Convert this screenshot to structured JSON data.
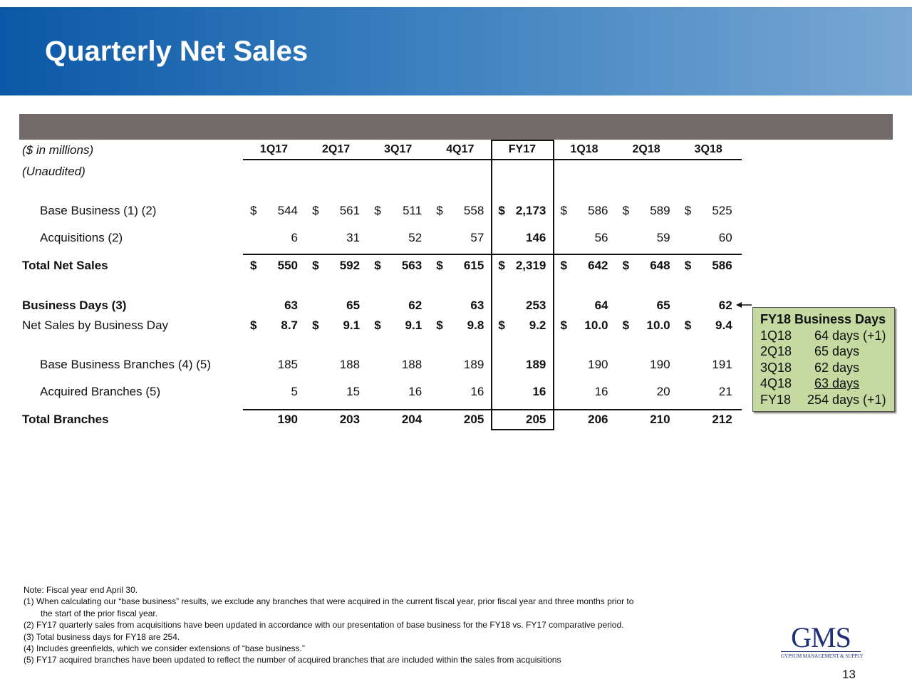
{
  "title": "Quarterly Net Sales",
  "table": {
    "units": "($ in millions)",
    "unaudited": "(Unaudited)",
    "columns": [
      "1Q17",
      "2Q17",
      "3Q17",
      "4Q17",
      "FY17",
      "1Q18",
      "2Q18",
      "3Q18"
    ],
    "rows": [
      {
        "label": "Base Business (1) (2)",
        "indent": true,
        "bold": false,
        "dollar": true,
        "values": [
          "544",
          "561",
          "511",
          "558",
          "2,173",
          "586",
          "589",
          "525"
        ]
      },
      {
        "label": "Acquisitions (2)",
        "indent": true,
        "bold": false,
        "dollar": false,
        "values": [
          "6",
          "31",
          "52",
          "57",
          "146",
          "56",
          "59",
          "60"
        ]
      },
      {
        "label": "Total Net Sales",
        "indent": false,
        "bold": true,
        "dollar": true,
        "values": [
          "550",
          "592",
          "563",
          "615",
          "2,319",
          "642",
          "648",
          "586"
        ]
      },
      {
        "label": "Business Days (3)",
        "indent": false,
        "bold": true,
        "dollar": false,
        "values": [
          "63",
          "65",
          "62",
          "63",
          "253",
          "64",
          "65",
          "62"
        ]
      },
      {
        "label": "Net Sales by Business Day",
        "indent": false,
        "bold": false,
        "dollar": true,
        "values": [
          "8.7",
          "9.1",
          "9.1",
          "9.8",
          "9.2",
          "10.0",
          "10.0",
          "9.4"
        ]
      },
      {
        "label": "Base Business Branches (4) (5)",
        "indent": true,
        "bold": false,
        "dollar": false,
        "values": [
          "185",
          "188",
          "188",
          "189",
          "189",
          "190",
          "190",
          "191"
        ]
      },
      {
        "label": "Acquired Branches (5)",
        "indent": true,
        "bold": false,
        "dollar": false,
        "values": [
          "5",
          "15",
          "16",
          "16",
          "16",
          "16",
          "20",
          "21"
        ]
      },
      {
        "label": "Total Branches",
        "indent": false,
        "bold": true,
        "dollar": false,
        "values": [
          "190",
          "203",
          "204",
          "205",
          "205",
          "206",
          "210",
          "212"
        ]
      }
    ],
    "currency_symbol": "$"
  },
  "days_box": {
    "title": "FY18 Business Days",
    "rows": [
      [
        "1Q18",
        "64 days (+1)"
      ],
      [
        "2Q18",
        "65 days"
      ],
      [
        "3Q18",
        "62 days"
      ],
      [
        "4Q18",
        "63 days"
      ],
      [
        "FY18",
        "254 days (+1)"
      ]
    ],
    "color": "#c5d9a0"
  },
  "notes": [
    "Note: Fiscal year end April 30.",
    "(1) When calculating our “base business” results, we exclude any branches that were acquired in the current fiscal year, prior fiscal year and three months prior to",
    "the start of the prior fiscal year.",
    "(2) FY17 quarterly sales from acquisitions have been updated in accordance with our presentation of base business for the FY18 vs. FY17 comparative period.",
    "(3) Total business days for FY18 are 254.",
    "(4) Includes greenfields, which we consider extensions of “base business.”",
    "(5) FY17 acquired branches have been updated to reflect the number of acquired branches that are included within the sales from acquisitions"
  ],
  "logo": {
    "mark": "GMS",
    "tagline": "GYPSUM MANAGEMENT & SUPPLY"
  },
  "page_number": "13"
}
